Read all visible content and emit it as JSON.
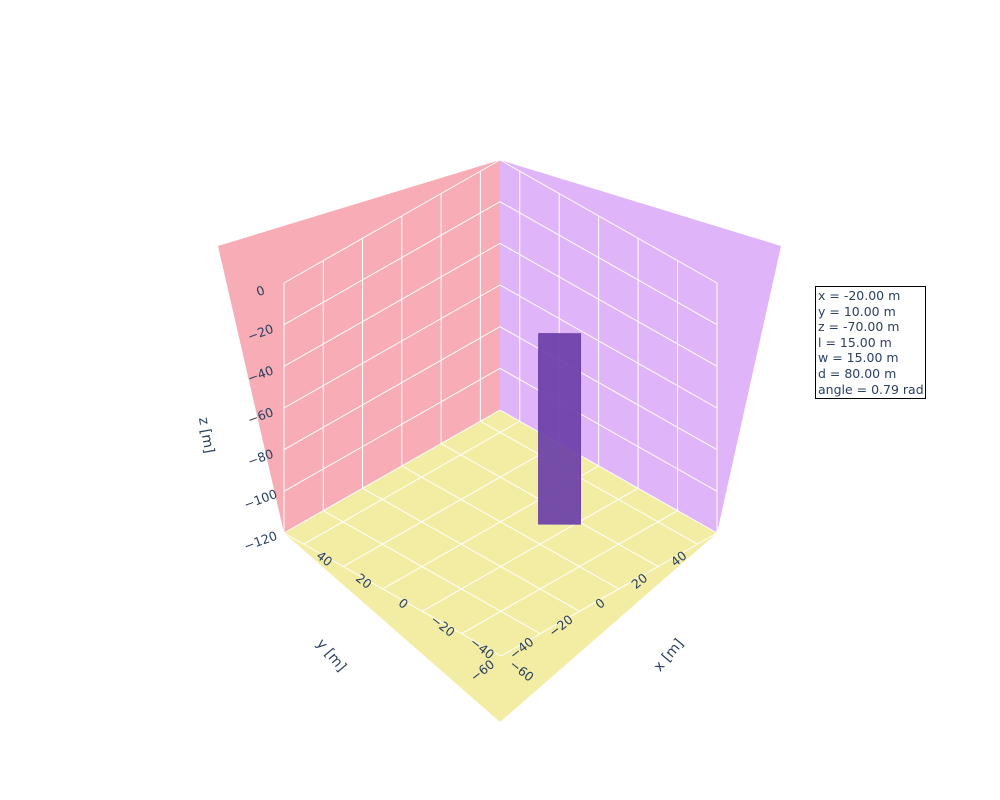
{
  "chart_data": {
    "type": "3d-box",
    "axes": {
      "x": {
        "label": "x [m]",
        "ticks": [
          "−60",
          "−40",
          "−20",
          "0",
          "20",
          "40"
        ],
        "range": [
          -60,
          50
        ]
      },
      "y": {
        "label": "y [m]",
        "ticks": [
          "−60",
          "−40",
          "−20",
          "0",
          "20",
          "40"
        ],
        "range": [
          -60,
          50
        ]
      },
      "z": {
        "label": "z [m]",
        "ticks": [
          "0",
          "−20",
          "−40",
          "−60",
          "−80",
          "−100",
          "−120"
        ],
        "range": [
          -120,
          0
        ]
      }
    },
    "walls": {
      "yz_plane_color": "#f7acb6",
      "xz_plane_color": "#dfb4f8",
      "floor_color": "#f3eda4",
      "grid_color": "#ffffff"
    },
    "object": {
      "color": "#6a3fa8",
      "x": -20,
      "y": 10,
      "z": -70,
      "length": 15,
      "width": 15,
      "depth": 80,
      "angle": 0.79
    },
    "annotation": [
      "x = -20.00 m",
      "y = 10.00 m",
      "z = -70.00 m",
      "l = 15.00 m",
      "w = 15.00 m",
      "d = 80.00 m",
      "angle = 0.79 rad"
    ]
  }
}
